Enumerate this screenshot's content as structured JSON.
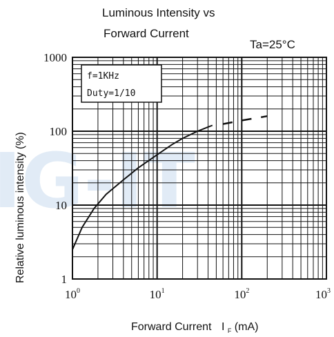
{
  "title_line1": "Luminous Intensity vs",
  "title_line2": "Forward Current",
  "condition": "Ta=25°C",
  "watermark": "IG-IT",
  "note_line1": "f=1KHz",
  "note_line2": "Duty=1/10",
  "chart_data": {
    "type": "line",
    "xlabel": "Forward Current",
    "xlabel_symbol": "I",
    "xlabel_sub": "F",
    "xlabel_unit": "(mA)",
    "ylabel": "Relative luminous intensity (%)",
    "xscale": "log",
    "yscale": "log",
    "xlim": [
      1,
      1000
    ],
    "ylim": [
      1,
      1000
    ],
    "grid": true,
    "x_ticks": [
      {
        "v": 1,
        "base": "10",
        "exp": "0"
      },
      {
        "v": 10,
        "base": "10",
        "exp": "1"
      },
      {
        "v": 100,
        "base": "10",
        "exp": "2"
      },
      {
        "v": 1000,
        "base": "10",
        "exp": "3"
      }
    ],
    "y_ticks": [
      {
        "v": 1,
        "label": "1"
      },
      {
        "v": 10,
        "label": "10"
      },
      {
        "v": 100,
        "label": "100"
      },
      {
        "v": 1000,
        "label": "1000"
      }
    ],
    "series": [
      {
        "solid": {
          "x": [
            1,
            1.3,
            1.8,
            2.5,
            4,
            6,
            10,
            15,
            20,
            30,
            40,
            45
          ],
          "y": [
            2.5,
            5,
            9,
            14,
            22,
            32,
            48,
            66,
            80,
            100,
            114,
            120
          ]
        },
        "dashed": {
          "x": [
            60,
            100,
            200
          ],
          "y": [
            125,
            140,
            160
          ]
        }
      }
    ]
  }
}
